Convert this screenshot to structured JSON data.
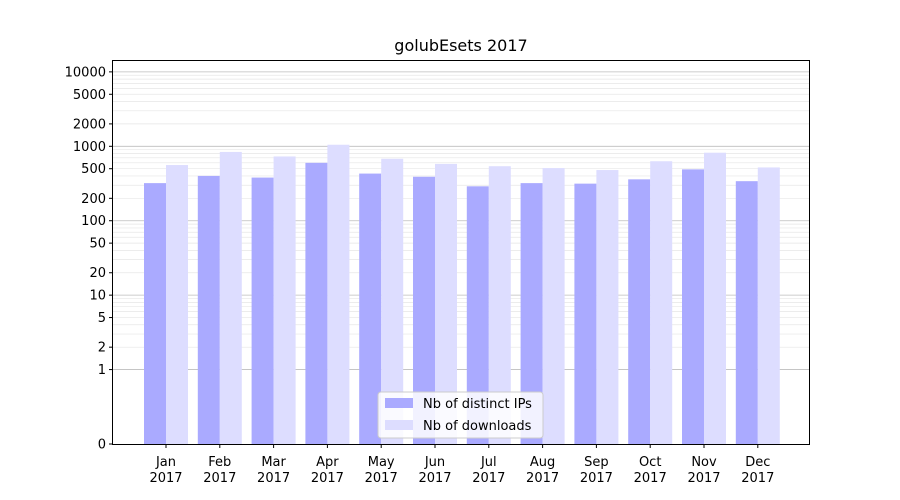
{
  "chart_data": {
    "type": "bar",
    "title": "golubEsets 2017",
    "xlabel": "",
    "ylabel": "",
    "yscale": "symlog",
    "ylim": [
      0,
      14000
    ],
    "yticks": [
      0,
      1,
      2,
      5,
      10,
      20,
      50,
      100,
      200,
      500,
      1000,
      2000,
      5000,
      10000
    ],
    "grid": true,
    "legend_position": "bottom-center",
    "categories": [
      {
        "month": "Jan",
        "year": "2017"
      },
      {
        "month": "Feb",
        "year": "2017"
      },
      {
        "month": "Mar",
        "year": "2017"
      },
      {
        "month": "Apr",
        "year": "2017"
      },
      {
        "month": "May",
        "year": "2017"
      },
      {
        "month": "Jun",
        "year": "2017"
      },
      {
        "month": "Jul",
        "year": "2017"
      },
      {
        "month": "Aug",
        "year": "2017"
      },
      {
        "month": "Sep",
        "year": "2017"
      },
      {
        "month": "Oct",
        "year": "2017"
      },
      {
        "month": "Nov",
        "year": "2017"
      },
      {
        "month": "Dec",
        "year": "2017"
      }
    ],
    "series": [
      {
        "name": "Nb of distinct IPs",
        "color": "#aaaaff",
        "values": [
          320,
          400,
          380,
          600,
          430,
          390,
          290,
          320,
          315,
          360,
          490,
          340
        ]
      },
      {
        "name": "Nb of downloads",
        "color": "#ddddff",
        "values": [
          560,
          840,
          730,
          1050,
          680,
          580,
          540,
          510,
          480,
          630,
          820,
          520
        ]
      }
    ]
  }
}
